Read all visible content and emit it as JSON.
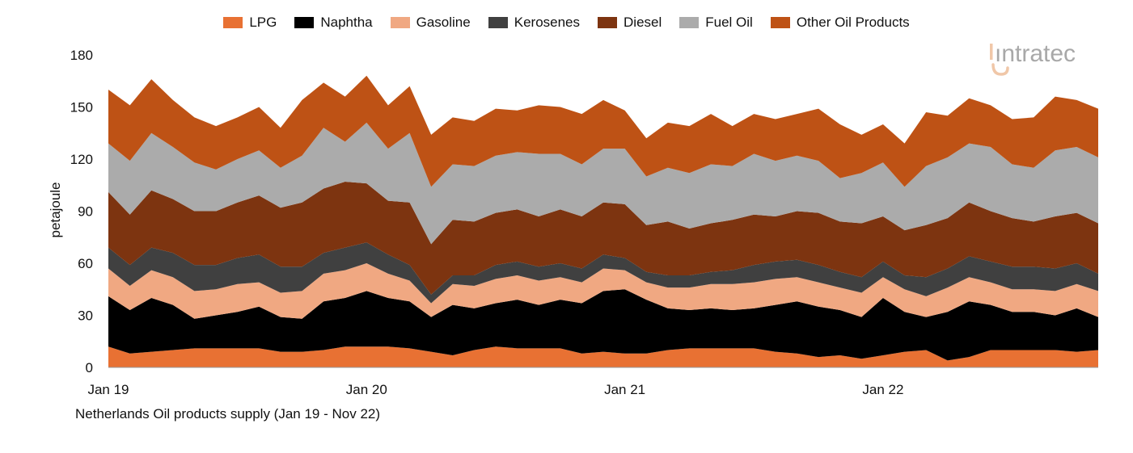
{
  "caption": "Netherlands Oil products supply (Jan 19 - Nov 22)",
  "logo_text": "intratec",
  "chart_data": {
    "type": "area",
    "stacked": true,
    "title": "",
    "xlabel": "",
    "ylabel": "petajoule",
    "ylim": [
      0,
      180
    ],
    "yticks": [
      0,
      30,
      60,
      90,
      120,
      150,
      180
    ],
    "x_start": "Jan 19",
    "x_end": "Nov 22",
    "xtick_labels": [
      {
        "label": "Jan 19",
        "month_index": 0
      },
      {
        "label": "Jan 20",
        "month_index": 12
      },
      {
        "label": "Jan 21",
        "month_index": 24
      },
      {
        "label": "Jan 22",
        "month_index": 36
      }
    ],
    "legend_position": "top",
    "grid": false,
    "series": [
      {
        "name": "LPG",
        "color": "#E87133",
        "values": [
          12,
          8,
          9,
          10,
          11,
          11,
          11,
          11,
          9,
          9,
          10,
          12,
          12,
          12,
          11,
          9,
          7,
          10,
          12,
          11,
          11,
          11,
          8,
          9,
          8,
          8,
          10,
          11,
          11,
          11,
          11,
          9,
          8,
          6,
          7,
          5,
          7,
          9,
          10,
          4,
          6,
          10,
          10,
          10,
          10,
          9,
          10
        ]
      },
      {
        "name": "Naphtha",
        "color": "#000000",
        "values": [
          29,
          25,
          31,
          26,
          17,
          19,
          21,
          24,
          20,
          19,
          28,
          28,
          32,
          28,
          27,
          20,
          29,
          24,
          25,
          28,
          25,
          28,
          29,
          35,
          37,
          31,
          24,
          22,
          23,
          22,
          23,
          27,
          30,
          29,
          26,
          24,
          33,
          23,
          19,
          28,
          32,
          26,
          22,
          22,
          20,
          25,
          19
        ]
      },
      {
        "name": "Gasoline",
        "color": "#F0A882",
        "values": [
          16,
          14,
          16,
          16,
          16,
          15,
          16,
          14,
          14,
          16,
          16,
          16,
          16,
          14,
          12,
          8,
          12,
          13,
          14,
          14,
          14,
          13,
          12,
          13,
          11,
          10,
          12,
          13,
          14,
          15,
          15,
          15,
          14,
          14,
          13,
          14,
          12,
          13,
          12,
          14,
          14,
          13,
          13,
          13,
          14,
          14,
          15
        ]
      },
      {
        "name": "Kerosenes",
        "color": "#404040",
        "values": [
          12,
          12,
          13,
          14,
          15,
          14,
          15,
          16,
          15,
          14,
          12,
          13,
          12,
          11,
          9,
          5,
          5,
          6,
          8,
          8,
          8,
          8,
          8,
          8,
          7,
          6,
          7,
          7,
          7,
          8,
          10,
          10,
          10,
          10,
          9,
          9,
          9,
          8,
          11,
          11,
          12,
          12,
          13,
          13,
          13,
          12,
          10
        ]
      },
      {
        "name": "Diesel",
        "color": "#7D3410",
        "values": [
          32,
          29,
          33,
          31,
          31,
          31,
          32,
          34,
          34,
          37,
          37,
          38,
          34,
          31,
          36,
          29,
          32,
          31,
          30,
          30,
          29,
          31,
          30,
          30,
          31,
          27,
          31,
          27,
          28,
          29,
          29,
          26,
          28,
          30,
          29,
          31,
          26,
          26,
          30,
          29,
          31,
          29,
          28,
          26,
          30,
          29,
          29
        ]
      },
      {
        "name": "Fuel Oil",
        "color": "#ABABAB",
        "values": [
          28,
          31,
          33,
          30,
          28,
          24,
          25,
          26,
          23,
          27,
          35,
          23,
          35,
          30,
          40,
          33,
          32,
          32,
          33,
          33,
          36,
          32,
          30,
          31,
          32,
          28,
          31,
          32,
          34,
          31,
          35,
          32,
          32,
          30,
          25,
          29,
          31,
          25,
          34,
          35,
          34,
          37,
          31,
          31,
          38,
          38,
          38
        ]
      },
      {
        "name": "Other Oil Products",
        "color": "#BE5215",
        "values": [
          31,
          32,
          31,
          27,
          26,
          25,
          24,
          25,
          23,
          32,
          26,
          26,
          27,
          25,
          27,
          30,
          27,
          26,
          27,
          24,
          28,
          27,
          29,
          28,
          22,
          22,
          26,
          27,
          29,
          23,
          23,
          24,
          24,
          30,
          31,
          22,
          22,
          25,
          31,
          24,
          26,
          24,
          26,
          29,
          31,
          27,
          28
        ]
      }
    ]
  }
}
